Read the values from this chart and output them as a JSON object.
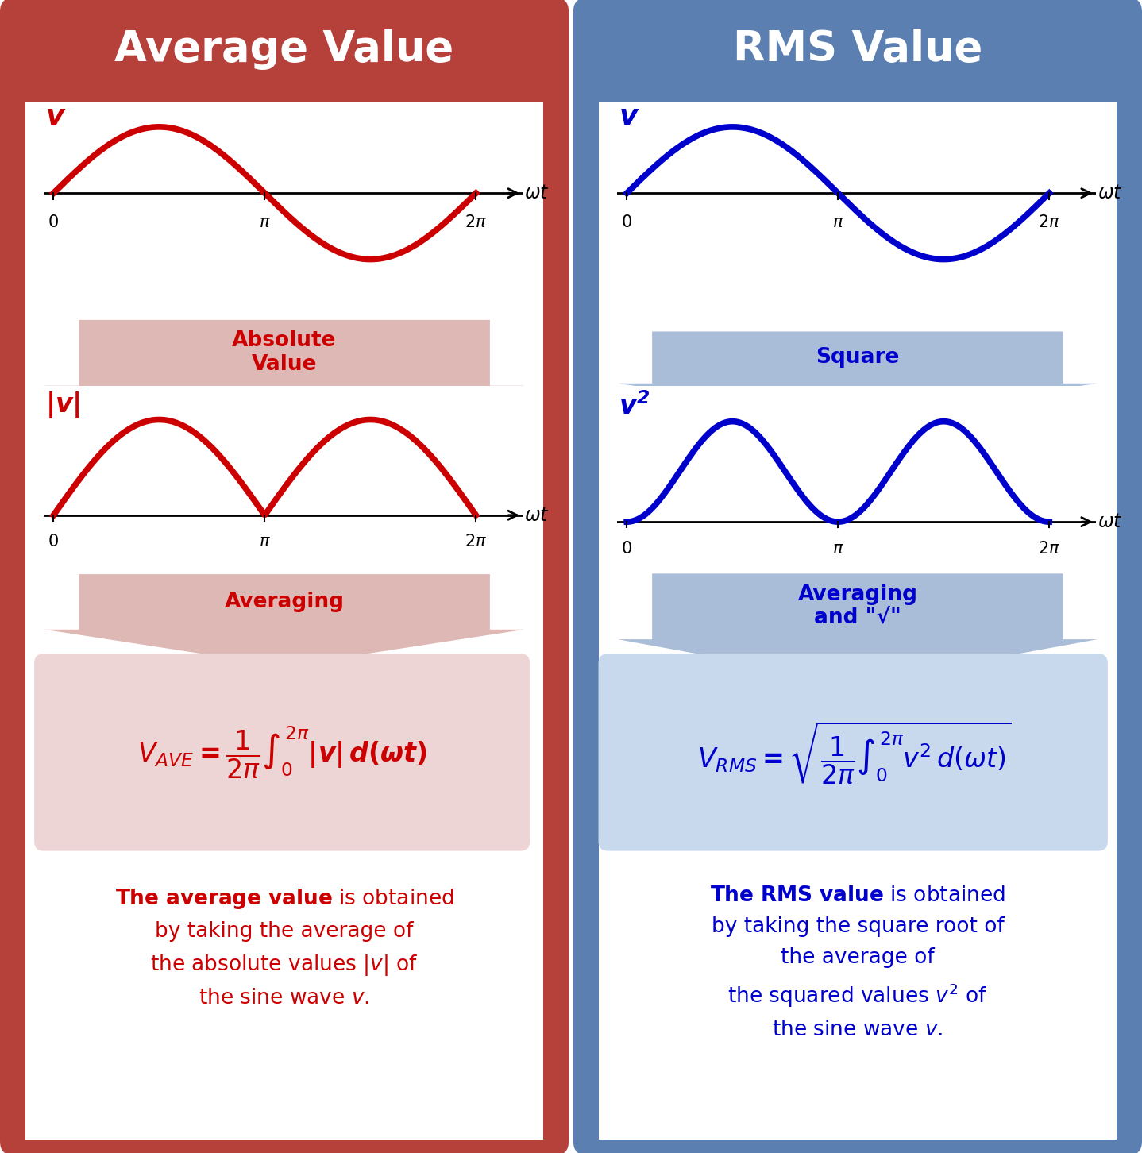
{
  "left_bg_color": "#B5413A",
  "right_bg_color": "#5B7FB0",
  "left_curve_color": "#CC0000",
  "right_curve_color": "#0000CC",
  "left_title": "Average Value",
  "right_title": "RMS Value",
  "left_arrow1_label": "Absolute\nValue",
  "left_arrow2_label": "Averaging",
  "right_arrow1_label": "Square",
  "right_arrow2_label": "Averaging\nand \"√\"",
  "left_formula_bg": "#EDD5D5",
  "right_formula_bg": "#C8D8ED",
  "left_arrow_color": "#DEB8B5",
  "right_arrow_color": "#AABDD8",
  "left_text_color": "#CC0000",
  "right_text_color": "#0000CC",
  "white": "#FFFFFF",
  "black": "#000000"
}
